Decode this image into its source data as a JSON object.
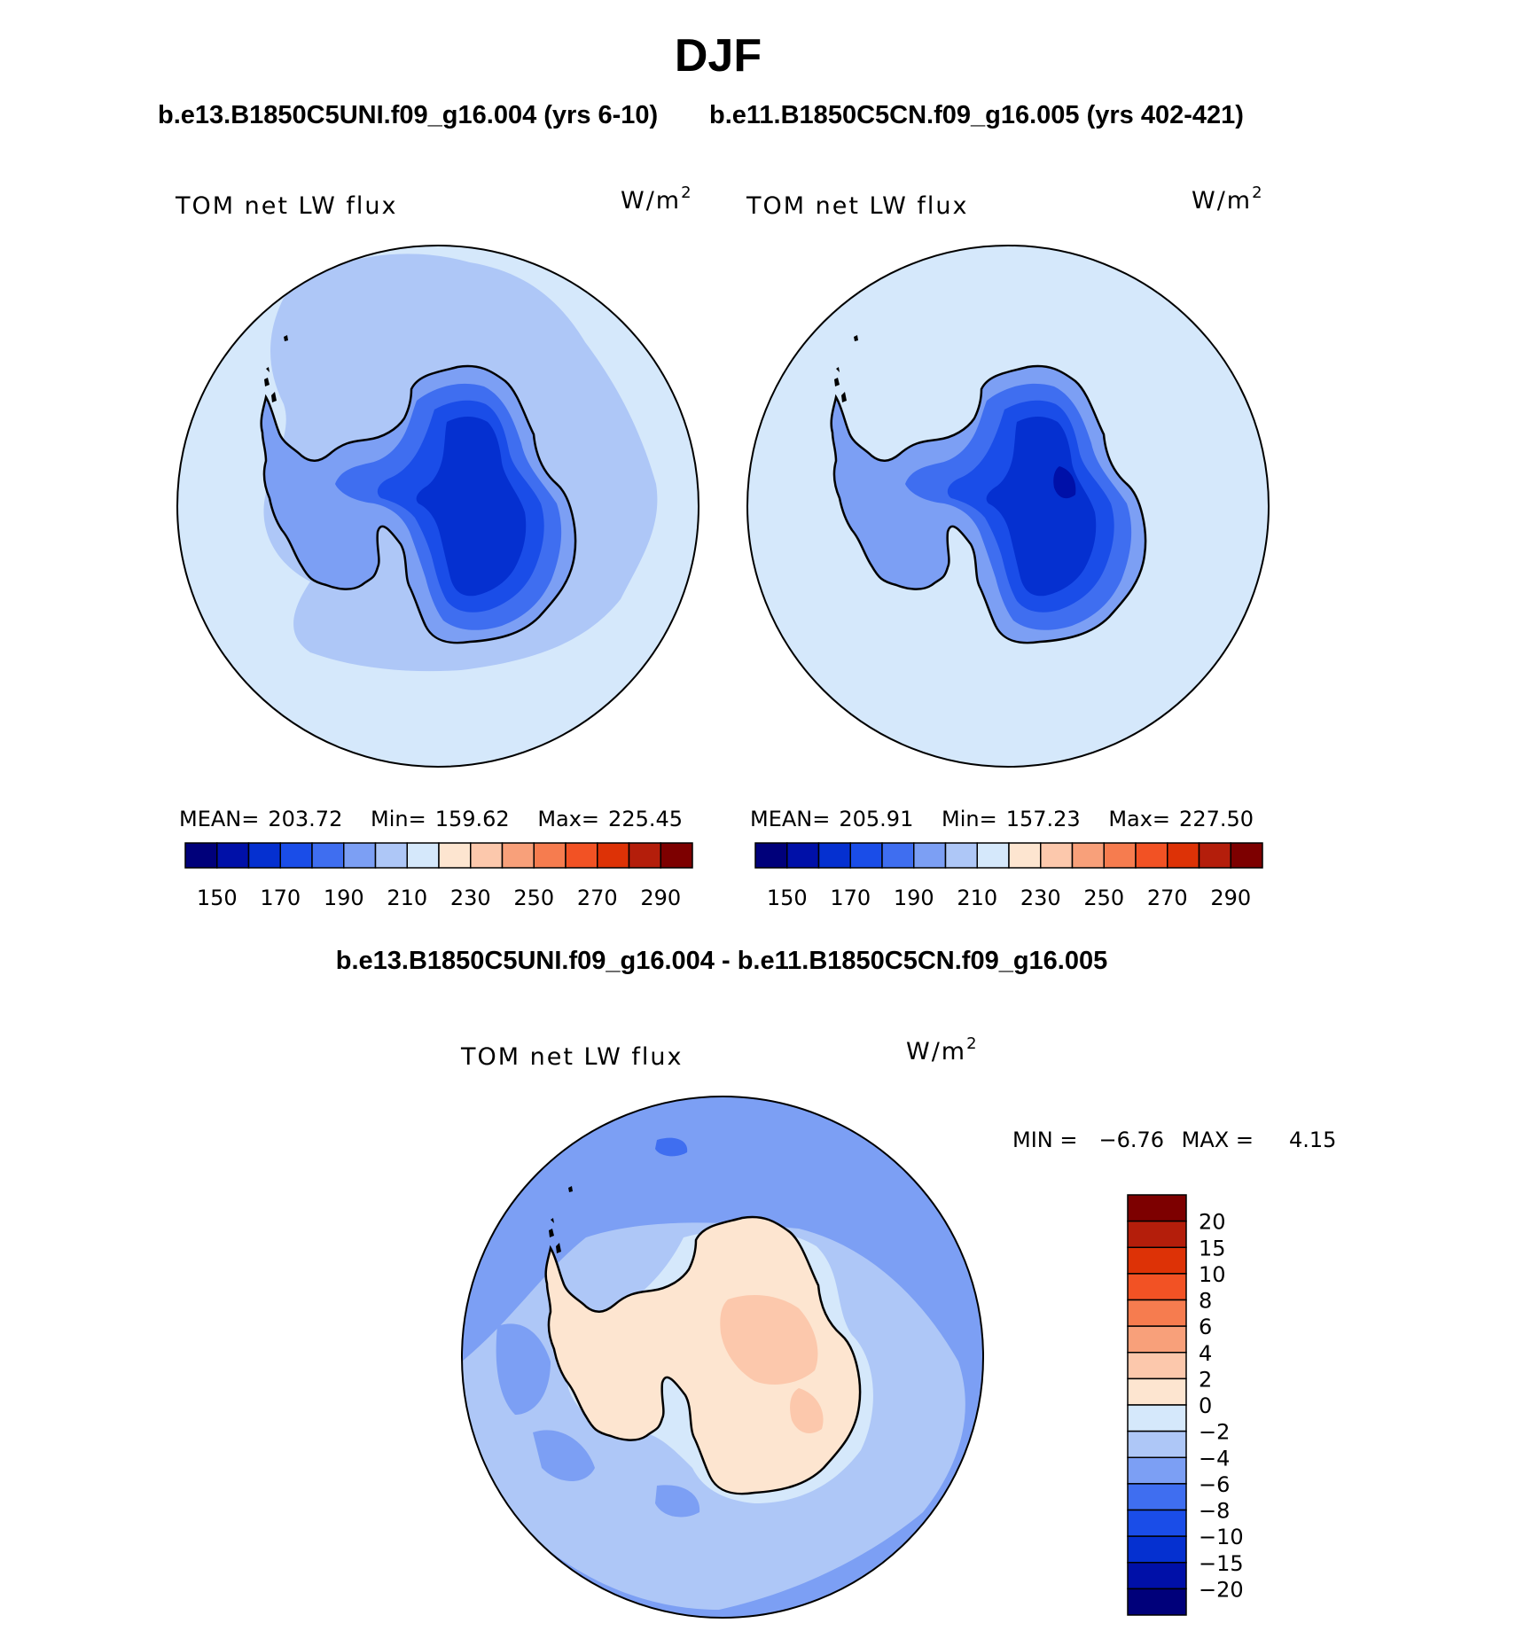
{
  "figure": {
    "title": "DJF",
    "case_a": "b.e13.B1850C5UNI.f09_g16.004 (yrs 6-10)",
    "case_b": "b.e11.B1850C5CN.f09_g16.005 (yrs 402-421)",
    "diff_title": "b.e13.B1850C5UNI.f09_g16.004 - b.e11.B1850C5CN.f09_g16.005"
  },
  "chart_data": [
    {
      "type": "heatmap",
      "projection": "south-polar-stereographic",
      "variable": "TOM net LW flux",
      "units_main": "W/m",
      "units_exp": "2",
      "stats": {
        "mean_label": "MEAN=",
        "mean": "203.72",
        "min_label": "Min=",
        "min": "159.62",
        "max_label": "Max=",
        "max": "225.45"
      },
      "colorbar": {
        "orientation": "horizontal",
        "tick_labels": [
          "150",
          "170",
          "190",
          "210",
          "230",
          "250",
          "270",
          "290"
        ],
        "colors": [
          "#00007a",
          "#0010a8",
          "#0530d0",
          "#1a4de8",
          "#3f6ef0",
          "#7c9ff4",
          "#aec7f7",
          "#d5e8fb",
          "#fde5d0",
          "#fcc8ac",
          "#f8a07a",
          "#f67c4f",
          "#f25224",
          "#dd3206",
          "#b41e0b",
          "#7d0000"
        ]
      }
    },
    {
      "type": "heatmap",
      "projection": "south-polar-stereographic",
      "variable": "TOM net LW flux",
      "units_main": "W/m",
      "units_exp": "2",
      "stats": {
        "mean_label": "MEAN=",
        "mean": "205.91",
        "min_label": "Min=",
        "min": "157.23",
        "max_label": "Max=",
        "max": "227.50"
      },
      "colorbar": {
        "orientation": "horizontal",
        "tick_labels": [
          "150",
          "170",
          "190",
          "210",
          "230",
          "250",
          "270",
          "290"
        ],
        "colors": [
          "#00007a",
          "#0010a8",
          "#0530d0",
          "#1a4de8",
          "#3f6ef0",
          "#7c9ff4",
          "#aec7f7",
          "#d5e8fb",
          "#fde5d0",
          "#fcc8ac",
          "#f8a07a",
          "#f67c4f",
          "#f25224",
          "#dd3206",
          "#b41e0b",
          "#7d0000"
        ]
      }
    },
    {
      "type": "heatmap",
      "projection": "south-polar-stereographic",
      "variable": "TOM net LW flux",
      "units_main": "W/m",
      "units_exp": "2",
      "stats": {
        "min_label": "MIN =",
        "min": "−6.76",
        "max_label": "MAX =",
        "max": "4.15"
      },
      "colorbar": {
        "orientation": "vertical",
        "tick_labels": [
          "20",
          "15",
          "10",
          "8",
          "6",
          "4",
          "2",
          "0",
          "−2",
          "−4",
          "−6",
          "−8",
          "−10",
          "−15",
          "−20"
        ],
        "colors": [
          "#7d0000",
          "#b41e0b",
          "#dd3206",
          "#f25224",
          "#f67c4f",
          "#f8a07a",
          "#fcc8ac",
          "#fde5d0",
          "#d5e8fb",
          "#aec7f7",
          "#7c9ff4",
          "#3f6ef0",
          "#1a4de8",
          "#0530d0",
          "#0010a8",
          "#00007a"
        ]
      }
    }
  ]
}
